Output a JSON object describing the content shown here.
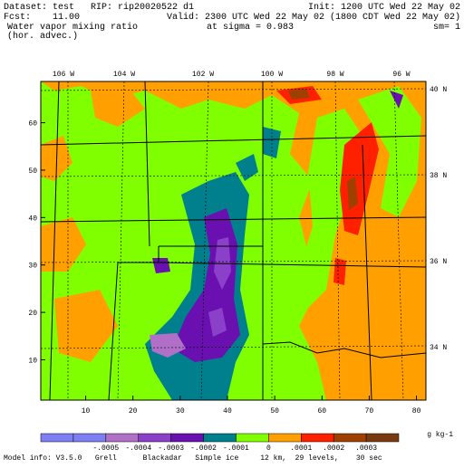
{
  "header": {
    "line1_left": "Dataset: test   RIP: rip20020522 d1",
    "line1_right": "Init: 1200 UTC Wed 22 May 02",
    "line2_left": "Fcst:    11.00",
    "line2_right": "Valid: 2300 UTC Wed 22 May 02 (1800 CDT Wed 22 May 02)",
    "line3_left": "Water vapor mixing ratio",
    "line3_mid": "at sigma = 0.983",
    "line3_right": "sm= 1",
    "line4_left": "(hor. advec.)"
  },
  "map": {
    "xlim": [
      0.5,
      82
    ],
    "ylim": [
      1.5,
      68.7
    ],
    "xticks": [
      10,
      20,
      30,
      40,
      50,
      60,
      70,
      80
    ],
    "yticks": [
      10,
      20,
      30,
      40,
      50,
      60
    ],
    "lon_labels": [
      "106 W",
      "104 W",
      "102 W",
      "100 W",
      "98 W",
      "96 W"
    ],
    "lat_labels": [
      "40 N",
      "38 N",
      "36 N",
      "34 N"
    ]
  },
  "colorbar": {
    "colors": [
      "#7f7ff5",
      "#7f7ff5",
      "#b070c8",
      "#8a40c8",
      "#6a10b0",
      "#00808c",
      "#80ff00",
      "#ffa000",
      "#ff2000",
      "#a04000",
      "#7a3a10"
    ],
    "labels": [
      "-.0005",
      "-.0004",
      "-.0003",
      "-.0002",
      "-.0001",
      "0",
      ".0001",
      ".0002",
      ".0003"
    ],
    "units": "g kg-1"
  },
  "footer": "Model info: V3.5.0   Grell      Blackadar   Simple ice     12 km,  29 levels,    30 sec"
}
